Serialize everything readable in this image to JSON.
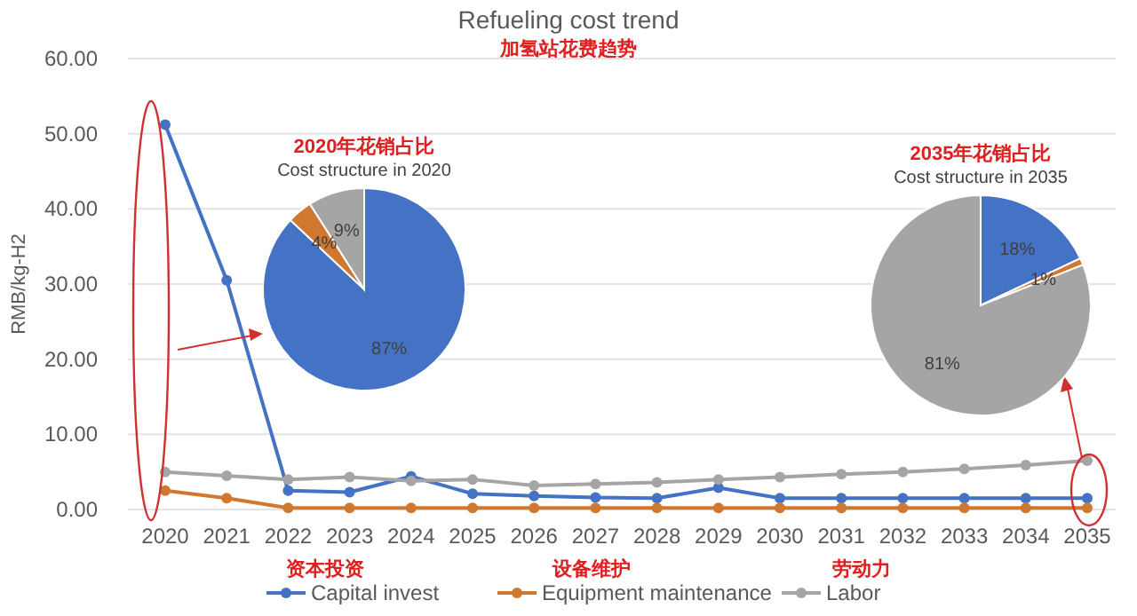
{
  "chart_data": [
    {
      "type": "line",
      "title": "Refueling cost trend",
      "subtitle": "加氢站花费趋势",
      "ylabel": "RMB/kg-H2",
      "categories": [
        "2020",
        "2021",
        "2022",
        "2023",
        "2024",
        "2025",
        "2026",
        "2027",
        "2028",
        "2029",
        "2030",
        "2031",
        "2032",
        "2033",
        "2034",
        "2035"
      ],
      "series": [
        {
          "name": "Capital invest",
          "color": "#4472c4",
          "values": [
            51.2,
            30.5,
            2.5,
            2.3,
            4.4,
            2.1,
            1.8,
            1.6,
            1.5,
            2.9,
            1.5,
            1.5,
            1.5,
            1.5,
            1.5,
            1.5
          ]
        },
        {
          "name": "Equipment maintenance",
          "color": "#d0782f",
          "values": [
            2.5,
            1.5,
            0.2,
            0.2,
            0.2,
            0.2,
            0.2,
            0.2,
            0.2,
            0.2,
            0.2,
            0.2,
            0.2,
            0.2,
            0.2,
            0.2
          ]
        },
        {
          "name": "Labor",
          "color": "#a5a5a5",
          "values": [
            5.0,
            4.5,
            4.0,
            4.3,
            3.8,
            4.0,
            3.2,
            3.4,
            3.6,
            4.0,
            4.3,
            4.7,
            5.0,
            5.4,
            5.9,
            6.5
          ]
        }
      ],
      "ylim": [
        0,
        60
      ],
      "yticks": [
        {
          "value": 0,
          "label": "0.00"
        },
        {
          "value": 10,
          "label": "10.00"
        },
        {
          "value": 20,
          "label": "20.00"
        },
        {
          "value": 30,
          "label": "30.00"
        },
        {
          "value": 40,
          "label": "40.00"
        },
        {
          "value": 50,
          "label": "50.00"
        },
        {
          "value": 60,
          "label": "60.00"
        }
      ],
      "grid": "y",
      "legend": "bottom",
      "marker": "circle",
      "annotations": [
        "资本投资",
        "设备维护",
        "劳动力"
      ]
    },
    {
      "type": "pie",
      "title": "2020年花销占比",
      "subtitle": "Cost structure in 2020",
      "categories": [
        null,
        null,
        null
      ],
      "values": [
        87,
        4,
        9
      ],
      "value_labels": [
        "87%",
        "4%",
        "9%"
      ],
      "colors": [
        "#4472c4",
        "#d0782f",
        "#a5a5a5"
      ]
    },
    {
      "type": "pie",
      "title": "2035年花销占比",
      "subtitle": "Cost structure in 2035",
      "categories": [
        null,
        null,
        null
      ],
      "values": [
        18,
        1,
        81
      ],
      "value_labels": [
        "18%",
        "1%",
        "81%"
      ],
      "colors": [
        "#4472c4",
        "#d0782f",
        "#a5a5a5"
      ]
    }
  ]
}
